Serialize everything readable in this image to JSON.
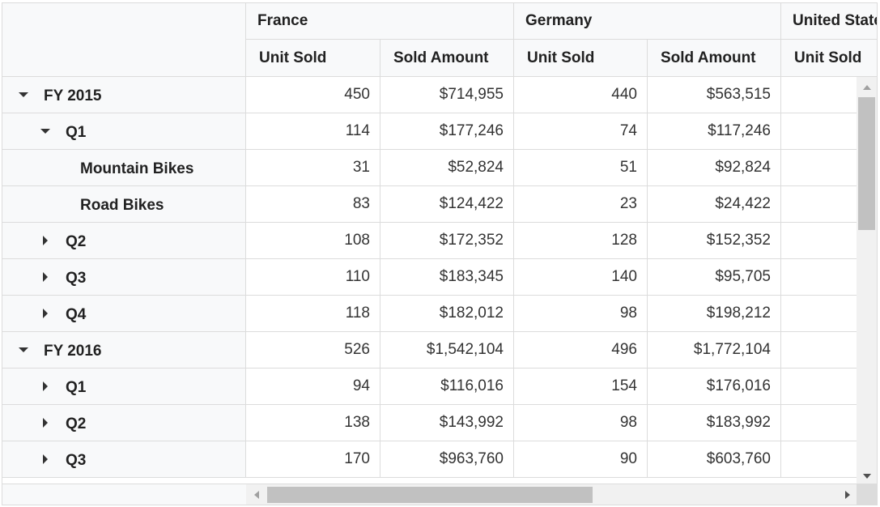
{
  "columns": {
    "countries": [
      "France",
      "Germany",
      "United States"
    ],
    "measures": [
      "Unit Sold",
      "Sold Amount"
    ]
  },
  "rows": [
    {
      "label": "FY 2015",
      "level": 0,
      "toggle": "expanded",
      "values": [
        "450",
        "$714,955",
        "440",
        "$563,515"
      ]
    },
    {
      "label": "Q1",
      "level": 1,
      "toggle": "expanded",
      "values": [
        "114",
        "$177,246",
        "74",
        "$117,246"
      ]
    },
    {
      "label": "Mountain Bikes",
      "level": 2,
      "toggle": "none",
      "values": [
        "31",
        "$52,824",
        "51",
        "$92,824"
      ]
    },
    {
      "label": "Road Bikes",
      "level": 2,
      "toggle": "none",
      "values": [
        "83",
        "$124,422",
        "23",
        "$24,422"
      ]
    },
    {
      "label": "Q2",
      "level": 1,
      "toggle": "collapsed",
      "values": [
        "108",
        "$172,352",
        "128",
        "$152,352"
      ]
    },
    {
      "label": "Q3",
      "level": 1,
      "toggle": "collapsed",
      "values": [
        "110",
        "$183,345",
        "140",
        "$95,705"
      ]
    },
    {
      "label": "Q4",
      "level": 1,
      "toggle": "collapsed",
      "values": [
        "118",
        "$182,012",
        "98",
        "$198,212"
      ]
    },
    {
      "label": "FY 2016",
      "level": 0,
      "toggle": "expanded",
      "values": [
        "526",
        "$1,542,104",
        "496",
        "$1,772,104"
      ]
    },
    {
      "label": "Q1",
      "level": 1,
      "toggle": "collapsed",
      "values": [
        "94",
        "$116,016",
        "154",
        "$176,016"
      ]
    },
    {
      "label": "Q2",
      "level": 1,
      "toggle": "collapsed",
      "values": [
        "138",
        "$143,992",
        "98",
        "$183,992"
      ]
    },
    {
      "label": "Q3",
      "level": 1,
      "toggle": "collapsed",
      "values": [
        "170",
        "$963,760",
        "90",
        "$603,760"
      ]
    }
  ],
  "icons": {
    "expanded": "caret-down-icon",
    "collapsed": "caret-right-icon"
  },
  "colors": {
    "header_bg": "#f8f9fa",
    "border": "#dcdcdc",
    "scroll_thumb": "#c1c1c1"
  }
}
